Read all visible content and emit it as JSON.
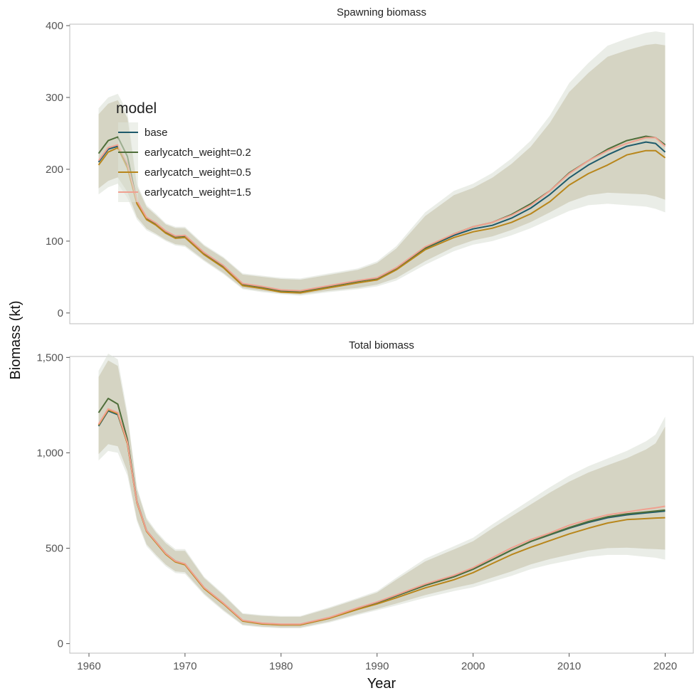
{
  "chart_data": {
    "type": "line",
    "ylabel": "Biomass (kt)",
    "xlabel": "Year",
    "xlim": [
      1958,
      2023
    ],
    "x_ticks": [
      "1960",
      "1970",
      "1980",
      "1990",
      "2000",
      "2010",
      "2020"
    ],
    "grid": false,
    "legend": {
      "title": "model",
      "placement": "top-left inside upper panel",
      "entries": [
        {
          "label": "base",
          "color": "#1d5a6b"
        },
        {
          "label": "earlycatch_weight=0.2",
          "color": "#4f6e3a"
        },
        {
          "label": "earlycatch_weight=0.5",
          "color": "#b8861b"
        },
        {
          "label": "earlycatch_weight=1.5",
          "color": "#f0a090"
        }
      ]
    },
    "panels": [
      {
        "title": "Spawning biomass",
        "ylim": [
          -15,
          402
        ],
        "y_ticks": [
          "0",
          "100",
          "200",
          "300",
          "400"
        ],
        "y_tick_values": [
          0,
          100,
          200,
          300,
          400
        ],
        "years": [
          1961,
          1962,
          1963,
          1964,
          1965,
          1966,
          1967,
          1968,
          1969,
          1970,
          1972,
          1974,
          1976,
          1978,
          1980,
          1982,
          1985,
          1988,
          1990,
          1992,
          1995,
          1998,
          2000,
          2002,
          2004,
          2006,
          2008,
          2010,
          2012,
          2014,
          2016,
          2018,
          2019,
          2020
        ],
        "band_lower": [
          165,
          175,
          180,
          160,
          130,
          115,
          108,
          100,
          94,
          92,
          72,
          54,
          33,
          29,
          26,
          24,
          29,
          33,
          37,
          45,
          67,
          86,
          95,
          100,
          108,
          118,
          130,
          142,
          150,
          152,
          150,
          148,
          145,
          140
        ],
        "band_upper": [
          285,
          300,
          305,
          280,
          180,
          150,
          138,
          125,
          120,
          120,
          95,
          78,
          55,
          52,
          49,
          48,
          55,
          62,
          72,
          93,
          140,
          170,
          180,
          195,
          215,
          240,
          275,
          320,
          348,
          372,
          382,
          390,
          392,
          390
        ],
        "series": [
          {
            "name": "base",
            "color": "#1d5a6b",
            "values": [
              210,
              228,
              232,
              205,
              155,
              132,
              124,
              113,
              106,
              107,
              83,
              65,
              40,
              36,
              31,
              30,
              37,
              44,
              48,
              62,
              90,
              108,
              117,
              122,
              132,
              146,
              165,
              188,
              206,
              220,
              232,
              238,
              236,
              224
            ]
          },
          {
            "name": "earlycatch_weight=0.2",
            "color": "#4f6e3a",
            "values": [
              222,
              240,
              245,
              218,
              155,
              132,
              124,
              113,
              106,
              107,
              83,
              65,
              40,
              36,
              31,
              30,
              37,
              44,
              48,
              62,
              90,
              110,
              120,
              126,
              137,
              152,
              170,
              195,
              212,
              228,
              240,
              246,
              244,
              234
            ]
          },
          {
            "name": "earlycatch_weight=0.5",
            "color": "#b8861b",
            "values": [
              206,
              224,
              230,
              202,
              152,
              130,
              122,
              111,
              104,
              105,
              81,
              63,
              38,
              34,
              29,
              28,
              35,
              42,
              46,
              60,
              88,
              105,
              113,
              118,
              126,
              138,
              155,
              178,
              194,
              206,
              220,
              226,
              226,
              216
            ]
          },
          {
            "name": "earlycatch_weight=1.5",
            "color": "#f0a090",
            "values": [
              212,
              230,
              234,
              208,
              156,
              133,
              125,
              114,
              107,
              108,
              84,
              66,
              41,
              37,
              32,
              31,
              38,
              45,
              49,
              63,
              92,
              110,
              120,
              126,
              136,
              150,
              170,
              194,
              212,
              226,
              236,
              244,
              244,
              232
            ]
          }
        ]
      },
      {
        "title": "Total biomass",
        "ylim": [
          -50,
          1505
        ],
        "y_ticks": [
          "0",
          "500",
          "1,000",
          "1,500"
        ],
        "y_tick_values": [
          0,
          500,
          1000,
          1500
        ],
        "years": [
          1961,
          1962,
          1963,
          1964,
          1965,
          1966,
          1967,
          1968,
          1969,
          1970,
          1972,
          1974,
          1976,
          1978,
          1980,
          1982,
          1985,
          1988,
          1990,
          1992,
          1995,
          1998,
          2000,
          2002,
          2004,
          2006,
          2008,
          2010,
          2012,
          2014,
          2016,
          2018,
          2019,
          2020
        ],
        "band_lower": [
          960,
          1010,
          1000,
          880,
          640,
          510,
          455,
          405,
          370,
          365,
          255,
          170,
          95,
          85,
          80,
          80,
          110,
          150,
          175,
          200,
          240,
          275,
          295,
          325,
          355,
          390,
          415,
          435,
          455,
          465,
          465,
          455,
          450,
          440
        ],
        "band_upper": [
          1430,
          1520,
          1490,
          1210,
          820,
          660,
          590,
          535,
          495,
          495,
          350,
          260,
          160,
          150,
          145,
          145,
          190,
          240,
          275,
          345,
          445,
          510,
          555,
          625,
          690,
          755,
          820,
          880,
          930,
          970,
          1010,
          1060,
          1095,
          1190
        ],
        "series": [
          {
            "name": "base",
            "color": "#1d5a6b",
            "values": [
              1140,
              1220,
              1200,
              1050,
              740,
              590,
              530,
              470,
              430,
              415,
              290,
              210,
              120,
              105,
              100,
              100,
              135,
              185,
              215,
              250,
              305,
              350,
              390,
              440,
              490,
              535,
              570,
              605,
              635,
              660,
              675,
              685,
              690,
              695
            ]
          },
          {
            "name": "earlycatch_weight=0.2",
            "color": "#4f6e3a",
            "values": [
              1210,
              1285,
              1255,
              1070,
              745,
              592,
              532,
              472,
              432,
              417,
              292,
              210,
              120,
              105,
              100,
              100,
              135,
              185,
              215,
              250,
              305,
              350,
              390,
              440,
              490,
              535,
              572,
              608,
              640,
              665,
              680,
              690,
              695,
              700
            ]
          },
          {
            "name": "earlycatch_weight=0.5",
            "color": "#b8861b",
            "values": [
              1145,
              1225,
              1205,
              1048,
              738,
              588,
              528,
              468,
              428,
              413,
              288,
              208,
              118,
              103,
              98,
              98,
              132,
              180,
              208,
              240,
              292,
              335,
              372,
              420,
              466,
              505,
              540,
              575,
              605,
              632,
              650,
              655,
              658,
              660
            ]
          },
          {
            "name": "earlycatch_weight=1.5",
            "color": "#f0a090",
            "values": [
              1150,
              1230,
              1210,
              1055,
              742,
              592,
              532,
              472,
              432,
              418,
              293,
              212,
              122,
              107,
              102,
              102,
              137,
              188,
              218,
              255,
              312,
              358,
              398,
              450,
              502,
              545,
              580,
              620,
              650,
              675,
              690,
              705,
              712,
              720
            ]
          }
        ]
      }
    ]
  }
}
